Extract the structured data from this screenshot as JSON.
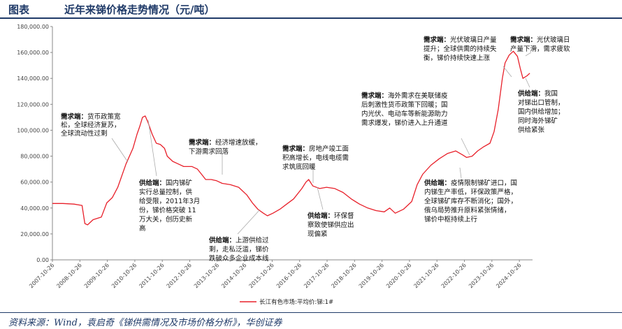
{
  "header": {
    "label": "图表",
    "title": "近年来锑价格走势情况（元/吨）"
  },
  "source": "资料来源：Wind，袁启奇《锑供需情况及市场价格分析》，华创证券",
  "chart_data": {
    "type": "line",
    "title": "近年来锑价格走势情况（元/吨）",
    "ylim": [
      0,
      180000
    ],
    "y_ticks": [
      "0.00",
      "20,000.00",
      "40,000.00",
      "60,000.00",
      "80,000.00",
      "100,000.00",
      "120,000.00",
      "140,000.00",
      "160,000.00",
      "180,000.00"
    ],
    "x_ticks": [
      "2007-10-26",
      "2008-10-26",
      "2009-10-26",
      "2010-10-26",
      "2011-10-26",
      "2012-10-26",
      "2013-10-26",
      "2014-10-26",
      "2015-10-26",
      "2016-10-26",
      "2017-10-26",
      "2018-10-26",
      "2019-10-26",
      "2020-10-26",
      "2021-10-26",
      "2022-10-26",
      "2023-10-26",
      "2024-10-26"
    ],
    "series": [
      {
        "name": "长江有色市场:平均价:锑:1#",
        "color": "#e8202a",
        "points": [
          [
            2007.82,
            43500
          ],
          [
            2008.2,
            43500
          ],
          [
            2008.6,
            43000
          ],
          [
            2008.9,
            42000
          ],
          [
            2009.0,
            28000
          ],
          [
            2009.1,
            27000
          ],
          [
            2009.3,
            31000
          ],
          [
            2009.6,
            33000
          ],
          [
            2009.8,
            44000
          ],
          [
            2010.0,
            48000
          ],
          [
            2010.2,
            56000
          ],
          [
            2010.5,
            74000
          ],
          [
            2010.75,
            86000
          ],
          [
            2010.9,
            97000
          ],
          [
            2011.0,
            103000
          ],
          [
            2011.1,
            110000
          ],
          [
            2011.2,
            111000
          ],
          [
            2011.3,
            106000
          ],
          [
            2011.45,
            97000
          ],
          [
            2011.6,
            90000
          ],
          [
            2011.75,
            89000
          ],
          [
            2011.9,
            86000
          ],
          [
            2012.0,
            80000
          ],
          [
            2012.2,
            76000
          ],
          [
            2012.4,
            74000
          ],
          [
            2012.6,
            72000
          ],
          [
            2012.9,
            72000
          ],
          [
            2013.1,
            70000
          ],
          [
            2013.25,
            66000
          ],
          [
            2013.4,
            62000
          ],
          [
            2013.6,
            62000
          ],
          [
            2013.8,
            61000
          ],
          [
            2014.0,
            59000
          ],
          [
            2014.3,
            58000
          ],
          [
            2014.6,
            56000
          ],
          [
            2014.9,
            50000
          ],
          [
            2015.1,
            44000
          ],
          [
            2015.3,
            39000
          ],
          [
            2015.5,
            36000
          ],
          [
            2015.65,
            34000
          ],
          [
            2015.85,
            36000
          ],
          [
            2016.1,
            39000
          ],
          [
            2016.35,
            43000
          ],
          [
            2016.6,
            47000
          ],
          [
            2016.9,
            55000
          ],
          [
            2017.05,
            60000
          ],
          [
            2017.15,
            62000
          ],
          [
            2017.3,
            57000
          ],
          [
            2017.55,
            55000
          ],
          [
            2017.8,
            56000
          ],
          [
            2018.1,
            55000
          ],
          [
            2018.4,
            52000
          ],
          [
            2018.7,
            47000
          ],
          [
            2019.0,
            43000
          ],
          [
            2019.3,
            40000
          ],
          [
            2019.6,
            38000
          ],
          [
            2019.9,
            37000
          ],
          [
            2020.1,
            40000
          ],
          [
            2020.3,
            36000
          ],
          [
            2020.6,
            39000
          ],
          [
            2020.9,
            45000
          ],
          [
            2021.1,
            58000
          ],
          [
            2021.3,
            66000
          ],
          [
            2021.6,
            73000
          ],
          [
            2021.9,
            78000
          ],
          [
            2022.2,
            82000
          ],
          [
            2022.5,
            84000
          ],
          [
            2022.75,
            81000
          ],
          [
            2022.9,
            79000
          ],
          [
            2023.1,
            80000
          ],
          [
            2023.3,
            84000
          ],
          [
            2023.5,
            87000
          ],
          [
            2023.75,
            90000
          ],
          [
            2023.9,
            99000
          ],
          [
            2024.05,
            116000
          ],
          [
            2024.2,
            140000
          ],
          [
            2024.3,
            152000
          ],
          [
            2024.45,
            158000
          ],
          [
            2024.6,
            161000
          ],
          [
            2024.75,
            157000
          ],
          [
            2024.85,
            148000
          ],
          [
            2024.95,
            140000
          ],
          [
            2025.1,
            142000
          ],
          [
            2025.2,
            144000
          ]
        ]
      }
    ],
    "annotations": [
      {
        "head": "需求端：",
        "lines": [
          "货币政策宽",
          "松，全球经济复苏，",
          "全球流动性过剩"
        ]
      },
      {
        "head": "供给端：",
        "lines": [
          "国内锑矿",
          "实行总量控制，供",
          "给受限，2011年3月",
          "份，锑价格突破 11",
          "万大关，创历史新",
          "高"
        ]
      },
      {
        "head": "需求端：",
        "lines": [
          "经济增速放缓，",
          "下游需求回落"
        ]
      },
      {
        "head": "供给端：",
        "lines": [
          "上游供给过",
          "剩，走私泛滥，锑价",
          "跌破众多企业成本线"
        ]
      },
      {
        "head": "需求端：",
        "lines": [
          "房地产竣工面",
          "积高增长，电线电缆需",
          "求筑底回暖"
        ]
      },
      {
        "head": "供给端：",
        "lines": [
          "环保督",
          "察致使锑供应出",
          "现偏紧"
        ]
      },
      {
        "head": "需求端：",
        "lines": [
          "海外需求在美联储疫",
          "后刺激性货币政策下回暖；国",
          "内光伏、电动车等新能源助力",
          "需求爆发，锑价进入上升通道"
        ]
      },
      {
        "head": "供给端：",
        "lines": [
          "疫情限制锑矿进口，国",
          "内锑生产率低，环保政策严格，",
          "全球锑矿库存不断消化；国外，",
          "俄乌局势推升原料紧张情绪，",
          "锑价中枢持续上行"
        ]
      },
      {
        "head": "需求端：",
        "lines": [
          "光伏玻璃日产量",
          "提升；全球供需的持续失",
          "衡，锑价持续快速上涨"
        ]
      },
      {
        "head": "需求端：",
        "lines": [
          "光伏玻璃日",
          "产量下滑，需求疲软"
        ]
      },
      {
        "head": "供给端：",
        "lines": [
          "我国",
          "对锑出口管制，",
          "国内供给增加；",
          "同时海外锑矿",
          "供给紧张"
        ]
      }
    ]
  }
}
